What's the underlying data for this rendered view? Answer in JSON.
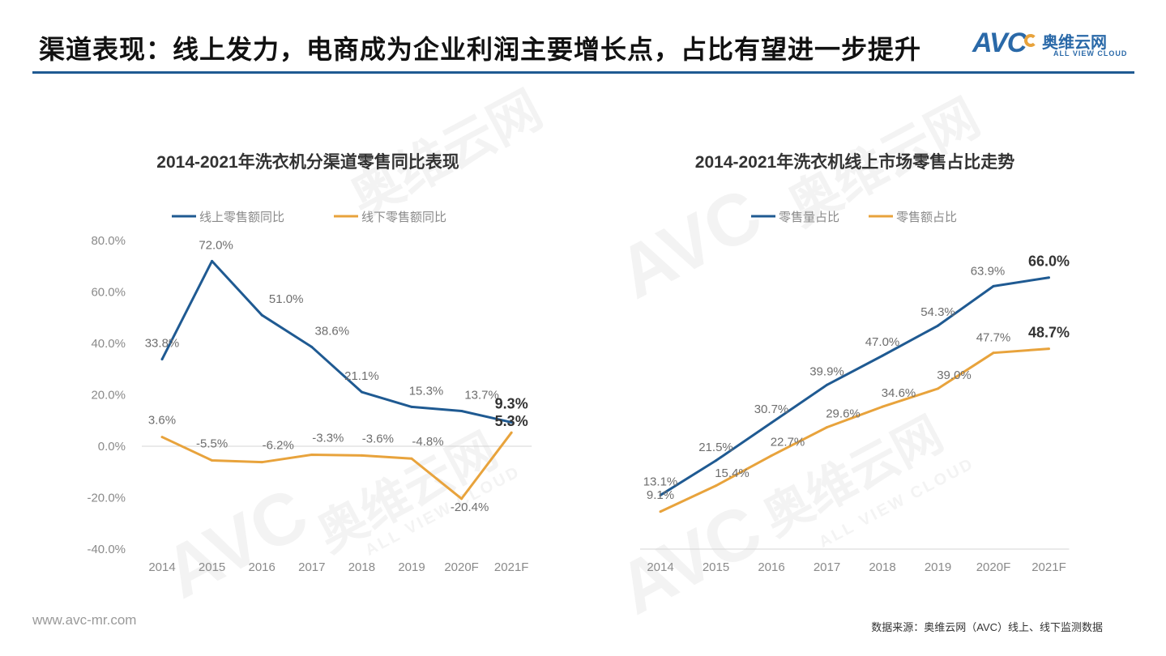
{
  "page_title": "渠道表现：线上发力，电商成为企业利润主要增长点，占比有望进一步提升",
  "logo": {
    "mark": "AVC",
    "name": "奥维云网",
    "sub": "ALL VIEW CLOUD"
  },
  "watermark": {
    "mark": "AVC",
    "name": "奥维云网",
    "sub": "ALL VIEW CLOUD"
  },
  "footer": {
    "url": "www.avc-mr.com",
    "source": "数据来源：奥维云网（AVC）线上、线下监测数据"
  },
  "chart_data": [
    {
      "type": "line",
      "title": "2014-2021年洗衣机分渠道零售同比表现",
      "categories": [
        "2014",
        "2015",
        "2016",
        "2017",
        "2018",
        "2019",
        "2020F",
        "2021F"
      ],
      "yticks": [
        "80.0%",
        "60.0%",
        "40.0%",
        "20.0%",
        "0.0%",
        "-20.0%",
        "-40.0%"
      ],
      "ylim": [
        -40,
        80
      ],
      "legend_position": "top-left",
      "series": [
        {
          "name": "线上零售额同比",
          "color": "#1f5a92",
          "values": [
            33.8,
            72.0,
            51.0,
            38.6,
            21.1,
            15.3,
            13.7,
            9.3
          ],
          "labels": [
            "33.8%",
            "72.0%",
            "51.0%",
            "38.6%",
            "21.1%",
            "15.3%",
            "13.7%",
            "9.3%"
          ]
        },
        {
          "name": "线下零售额同比",
          "color": "#e8a33c",
          "values": [
            3.6,
            -5.5,
            -6.2,
            -3.3,
            -3.6,
            -4.8,
            -20.4,
            5.3
          ],
          "labels": [
            "3.6%",
            "-5.5%",
            "-6.2%",
            "-3.3%",
            "-3.6%",
            "-4.8%",
            "-20.4%",
            "5.3%"
          ]
        }
      ]
    },
    {
      "type": "line",
      "title": "2014-2021年洗衣机线上市场零售占比走势",
      "categories": [
        "2014",
        "2015",
        "2016",
        "2017",
        "2018",
        "2019",
        "2020F",
        "2021F"
      ],
      "ylim": [
        0,
        75
      ],
      "legend_position": "top-left",
      "series": [
        {
          "name": "零售量占比",
          "color": "#1f5a92",
          "values": [
            13.1,
            21.5,
            30.7,
            39.9,
            47.0,
            54.3,
            63.9,
            66.0
          ],
          "labels": [
            "13.1%",
            "21.5%",
            "30.7%",
            "39.9%",
            "47.0%",
            "54.3%",
            "63.9%",
            "66.0%"
          ]
        },
        {
          "name": "零售额占比",
          "color": "#e8a33c",
          "values": [
            9.1,
            15.4,
            22.7,
            29.6,
            34.6,
            39.0,
            47.7,
            48.7
          ],
          "labels": [
            "9.1%",
            "15.4%",
            "22.7%",
            "29.6%",
            "34.6%",
            "39.0%",
            "47.7%",
            "48.7%"
          ]
        }
      ]
    }
  ]
}
